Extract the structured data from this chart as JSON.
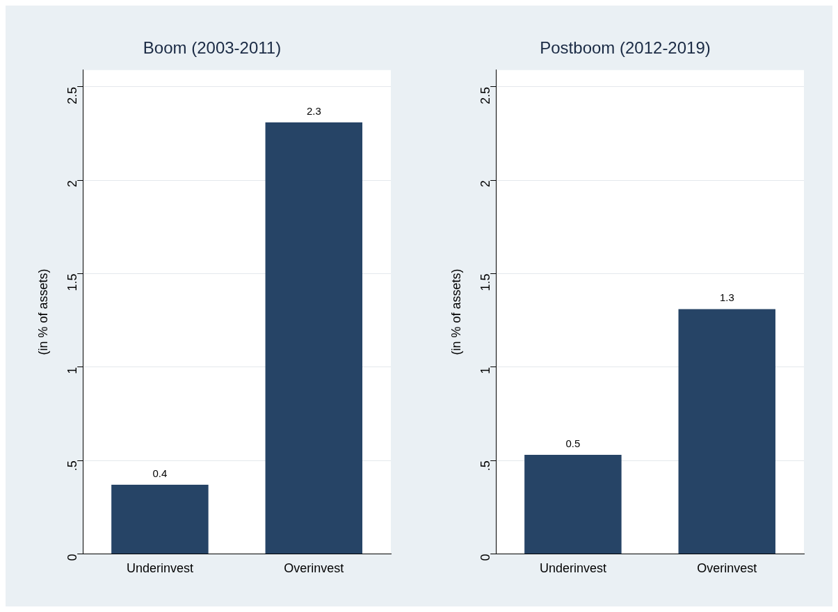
{
  "chart_data": [
    {
      "type": "bar",
      "title": "Boom (2003-2011)",
      "ylabel": "(in % of assets)",
      "categories": [
        "Underinvest",
        "Overinvest"
      ],
      "values": [
        0.37,
        2.31
      ],
      "value_labels": [
        "0.4",
        "2.3"
      ],
      "color": "#264466",
      "ylim": [
        0,
        2.59
      ],
      "yticks": [
        0,
        {
          "value": 0.5,
          "label": ".5"
        },
        1,
        1.5,
        2,
        2.5
      ],
      "grid": "y",
      "legend": false
    },
    {
      "type": "bar",
      "title": "Postboom (2012-2019)",
      "ylabel": "(in % of assets)",
      "categories": [
        "Underinvest",
        "Overinvest"
      ],
      "values": [
        0.53,
        1.31
      ],
      "value_labels": [
        "0.5",
        "1.3"
      ],
      "color": "#264466",
      "ylim": [
        0,
        2.59
      ],
      "yticks": [
        0,
        {
          "value": 0.5,
          "label": ".5"
        },
        1,
        1.5,
        2,
        2.5
      ],
      "grid": "y",
      "legend": false
    }
  ]
}
